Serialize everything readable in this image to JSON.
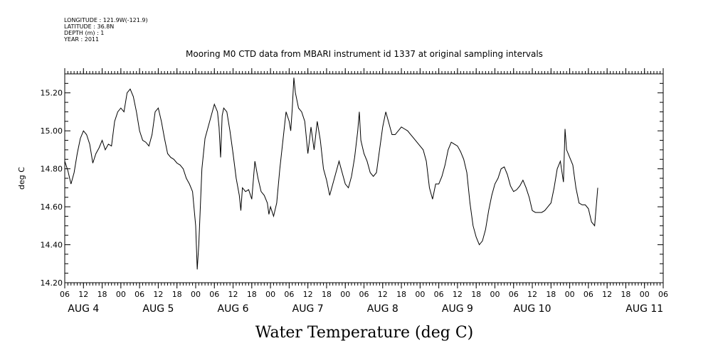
{
  "header": {
    "lines": [
      "LONGITUDE : 121.9W(-121.9)",
      "LATITUDE : 36.8N",
      "DEPTH (m) : 1",
      "YEAR : 2011"
    ]
  },
  "chart_data": {
    "type": "line",
    "title": "Mooring M0 CTD data from MBARI instrument id 1337 at original sampling intervals",
    "xlabel": "Water Temperature (deg C)",
    "ylabel": "deg C",
    "ylim": [
      14.2,
      15.3
    ],
    "yticks": [
      14.2,
      14.4,
      14.6,
      14.8,
      15.0,
      15.2
    ],
    "ytick_labels": [
      "14.20",
      "14.40",
      "14.60",
      "14.80",
      "15.00",
      "15.20"
    ],
    "x_unit": "hours since AUG 4 00:00",
    "xlim": [
      -18,
      174
    ],
    "hour_ticks": [
      -18,
      -12,
      -6,
      0,
      6,
      12,
      18,
      24,
      30,
      36,
      42,
      48,
      54,
      60,
      66,
      72,
      78,
      84,
      90,
      96,
      102,
      108,
      114,
      120,
      126,
      132,
      138,
      144,
      150,
      156,
      162,
      168,
      174
    ],
    "hour_tick_labels": [
      "06",
      "12",
      "18",
      "00",
      "06",
      "12",
      "18",
      "00",
      "06",
      "12",
      "18",
      "00",
      "06",
      "12",
      "18",
      "00",
      "06",
      "12",
      "18",
      "00",
      "06",
      "12",
      "18",
      "00",
      "06",
      "12",
      "18",
      "00",
      "06",
      "12",
      "18",
      "00",
      "06"
    ],
    "day_labels": [
      {
        "text": "AUG  4",
        "hour": -12
      },
      {
        "text": "AUG  5",
        "hour": 12
      },
      {
        "text": "AUG  6",
        "hour": 36
      },
      {
        "text": "AUG  7",
        "hour": 60
      },
      {
        "text": "AUG  8",
        "hour": 84
      },
      {
        "text": "AUG  9",
        "hour": 108
      },
      {
        "text": "AUG 10",
        "hour": 132
      },
      {
        "text": "AUG 11",
        "hour": 168
      }
    ],
    "series": [
      {
        "values": [
          [
            -18,
            14.84
          ],
          [
            -17,
            14.79
          ],
          [
            -16,
            14.72
          ],
          [
            -15,
            14.78
          ],
          [
            -14,
            14.88
          ],
          [
            -13,
            14.96
          ],
          [
            -12,
            15.0
          ],
          [
            -11,
            14.98
          ],
          [
            -10,
            14.93
          ],
          [
            -9,
            14.83
          ],
          [
            -8,
            14.88
          ],
          [
            -7,
            14.91
          ],
          [
            -6,
            14.95
          ],
          [
            -5,
            14.9
          ],
          [
            -4,
            14.93
          ],
          [
            -3,
            14.92
          ],
          [
            -2,
            15.05
          ],
          [
            -1,
            15.1
          ],
          [
            0,
            15.12
          ],
          [
            1,
            15.1
          ],
          [
            2,
            15.2
          ],
          [
            3,
            15.22
          ],
          [
            4,
            15.18
          ],
          [
            5,
            15.1
          ],
          [
            6,
            15.0
          ],
          [
            7,
            14.95
          ],
          [
            8,
            14.94
          ],
          [
            9,
            14.92
          ],
          [
            10,
            14.98
          ],
          [
            11,
            15.1
          ],
          [
            12,
            15.12
          ],
          [
            13,
            15.05
          ],
          [
            14,
            14.96
          ],
          [
            15,
            14.88
          ],
          [
            16,
            14.86
          ],
          [
            17,
            14.85
          ],
          [
            18,
            14.83
          ],
          [
            19,
            14.82
          ],
          [
            20,
            14.8
          ],
          [
            21,
            14.75
          ],
          [
            22,
            14.72
          ],
          [
            23,
            14.68
          ],
          [
            24,
            14.5
          ],
          [
            24.5,
            14.27
          ],
          [
            25,
            14.4
          ],
          [
            25.5,
            14.6
          ],
          [
            26,
            14.8
          ],
          [
            27,
            14.96
          ],
          [
            28,
            15.02
          ],
          [
            29,
            15.08
          ],
          [
            30,
            15.14
          ],
          [
            31,
            15.1
          ],
          [
            31.5,
            15.02
          ],
          [
            32,
            14.86
          ],
          [
            32.5,
            15.08
          ],
          [
            33,
            15.12
          ],
          [
            34,
            15.1
          ],
          [
            35,
            15.0
          ],
          [
            36,
            14.88
          ],
          [
            37,
            14.75
          ],
          [
            38,
            14.66
          ],
          [
            38.5,
            14.58
          ],
          [
            39,
            14.7
          ],
          [
            40,
            14.68
          ],
          [
            41,
            14.69
          ],
          [
            42,
            14.64
          ],
          [
            43,
            14.84
          ],
          [
            44,
            14.75
          ],
          [
            45,
            14.68
          ],
          [
            46,
            14.66
          ],
          [
            47,
            14.62
          ],
          [
            47.5,
            14.56
          ],
          [
            48,
            14.6
          ],
          [
            49,
            14.55
          ],
          [
            50,
            14.62
          ],
          [
            51,
            14.8
          ],
          [
            52,
            14.95
          ],
          [
            53,
            15.1
          ],
          [
            54,
            15.05
          ],
          [
            54.5,
            15.0
          ],
          [
            55,
            15.12
          ],
          [
            55.5,
            15.28
          ],
          [
            56,
            15.2
          ],
          [
            57,
            15.12
          ],
          [
            58,
            15.1
          ],
          [
            59,
            15.05
          ],
          [
            60,
            14.88
          ],
          [
            61,
            15.02
          ],
          [
            62,
            14.9
          ],
          [
            63,
            15.05
          ],
          [
            64,
            14.95
          ],
          [
            65,
            14.8
          ],
          [
            66,
            14.74
          ],
          [
            67,
            14.66
          ],
          [
            68,
            14.72
          ],
          [
            69,
            14.78
          ],
          [
            70,
            14.84
          ],
          [
            71,
            14.78
          ],
          [
            72,
            14.72
          ],
          [
            73,
            14.7
          ],
          [
            74,
            14.76
          ],
          [
            75,
            14.86
          ],
          [
            76,
            15.0
          ],
          [
            76.5,
            15.1
          ],
          [
            77,
            14.95
          ],
          [
            78,
            14.88
          ],
          [
            79,
            14.84
          ],
          [
            80,
            14.78
          ],
          [
            81,
            14.76
          ],
          [
            82,
            14.78
          ],
          [
            83,
            14.9
          ],
          [
            84,
            15.02
          ],
          [
            85,
            15.1
          ],
          [
            86,
            15.04
          ],
          [
            87,
            14.98
          ],
          [
            88,
            14.98
          ],
          [
            89,
            15.0
          ],
          [
            90,
            15.02
          ],
          [
            91,
            15.01
          ],
          [
            92,
            15.0
          ],
          [
            93,
            14.98
          ],
          [
            94,
            14.96
          ],
          [
            95,
            14.94
          ],
          [
            96,
            14.92
          ],
          [
            97,
            14.9
          ],
          [
            98,
            14.84
          ],
          [
            99,
            14.7
          ],
          [
            100,
            14.64
          ],
          [
            101,
            14.72
          ],
          [
            102,
            14.72
          ],
          [
            103,
            14.76
          ],
          [
            104,
            14.82
          ],
          [
            105,
            14.9
          ],
          [
            106,
            14.94
          ],
          [
            107,
            14.93
          ],
          [
            108,
            14.92
          ],
          [
            109,
            14.89
          ],
          [
            110,
            14.85
          ],
          [
            111,
            14.78
          ],
          [
            112,
            14.62
          ],
          [
            113,
            14.5
          ],
          [
            114,
            14.44
          ],
          [
            115,
            14.4
          ],
          [
            116,
            14.42
          ],
          [
            117,
            14.48
          ],
          [
            118,
            14.58
          ],
          [
            119,
            14.66
          ],
          [
            120,
            14.72
          ],
          [
            121,
            14.75
          ],
          [
            122,
            14.8
          ],
          [
            123,
            14.81
          ],
          [
            124,
            14.77
          ],
          [
            125,
            14.71
          ],
          [
            126,
            14.68
          ],
          [
            127,
            14.69
          ],
          [
            128,
            14.71
          ],
          [
            129,
            14.74
          ],
          [
            130,
            14.7
          ],
          [
            131,
            14.65
          ],
          [
            132,
            14.58
          ],
          [
            133,
            14.57
          ],
          [
            134,
            14.57
          ],
          [
            135,
            14.57
          ],
          [
            136,
            14.58
          ],
          [
            137,
            14.6
          ],
          [
            138,
            14.62
          ],
          [
            139,
            14.7
          ],
          [
            140,
            14.8
          ],
          [
            141,
            14.84
          ],
          [
            142,
            14.73
          ],
          [
            142.5,
            15.01
          ],
          [
            143,
            14.9
          ],
          [
            144,
            14.86
          ],
          [
            145,
            14.82
          ],
          [
            146,
            14.7
          ],
          [
            147,
            14.62
          ],
          [
            148,
            14.61
          ],
          [
            149,
            14.61
          ],
          [
            150,
            14.59
          ],
          [
            151,
            14.52
          ],
          [
            152,
            14.5
          ],
          [
            153,
            14.7
          ]
        ]
      }
    ],
    "grid": false
  }
}
